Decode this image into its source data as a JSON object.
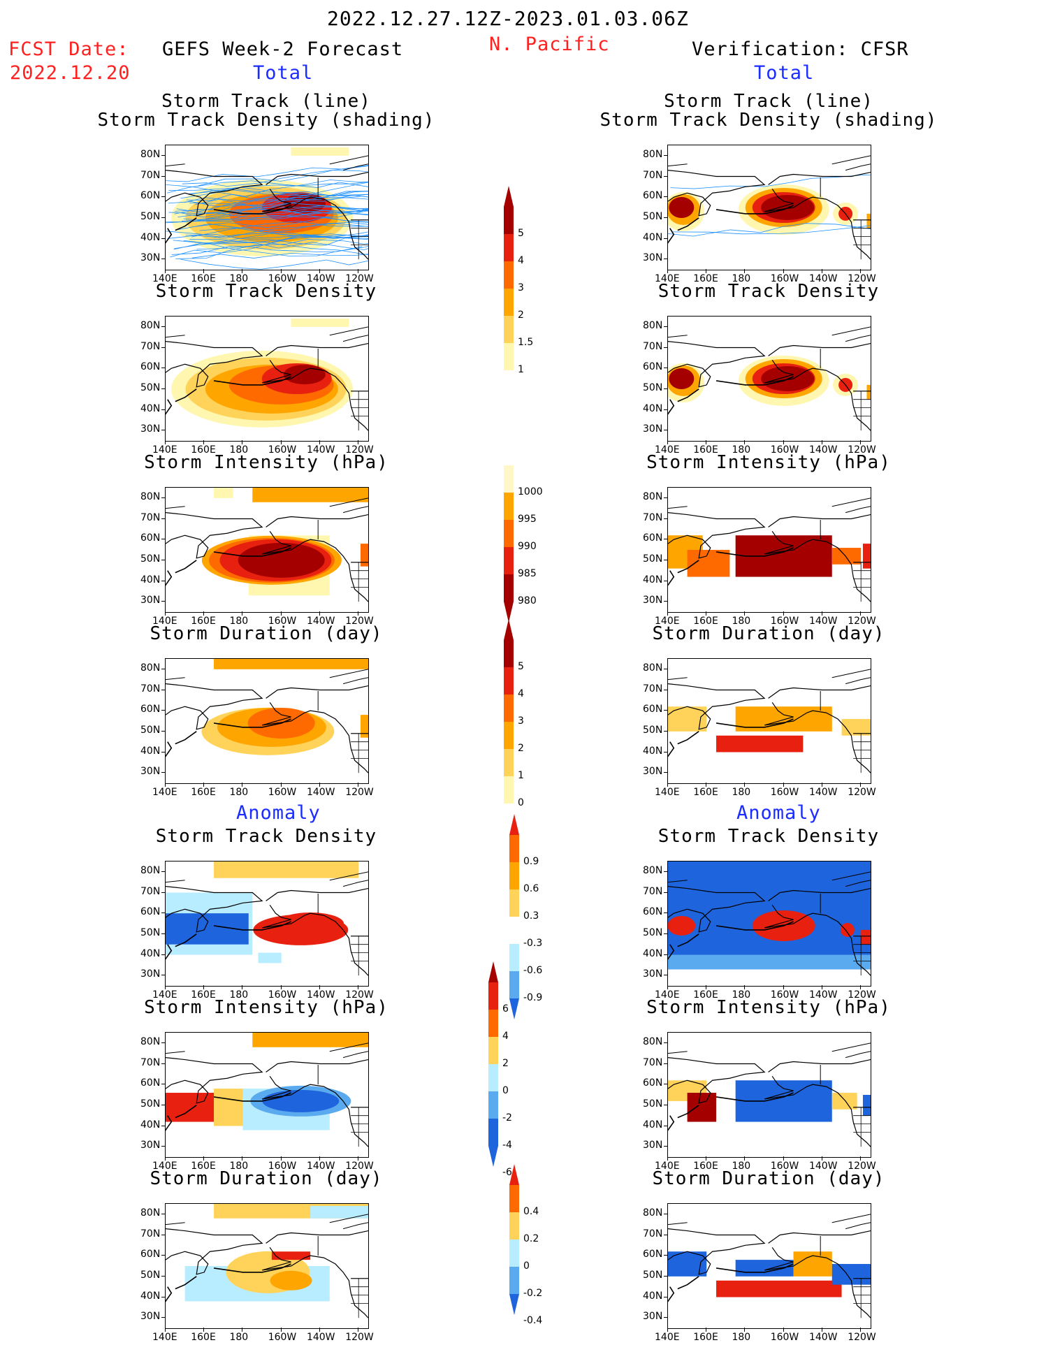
{
  "header": {
    "period": "2022.12.27.12Z-2023.01.03.06Z",
    "fcst_label": "FCST Date:",
    "fcst_date": "2022.12.20",
    "left_title": "GEFS Week-2 Forecast",
    "region": "N. Pacific",
    "right_title": "Verification: CFSR",
    "total_left": "Total",
    "total_right": "Total",
    "anomaly_left": "Anomaly",
    "anomaly_right": "Anomaly"
  },
  "axes": {
    "lat_labels": [
      "80N",
      "70N",
      "60N",
      "50N",
      "40N",
      "30N"
    ],
    "lon_labels": [
      "140E",
      "160E",
      "180",
      "160W",
      "140W",
      "120W"
    ]
  },
  "panels": {
    "l1": {
      "title1": "Storm Track (line)",
      "title2": "Storm Track Density (shading)"
    },
    "r1": {
      "title1": "Storm Track (line)",
      "title2": "Storm Track Density (shading)"
    },
    "l2": {
      "title": "Storm Track Density"
    },
    "r2": {
      "title": "Storm Track Density"
    },
    "l3": {
      "title": "Storm Intensity (hPa)"
    },
    "r3": {
      "title": "Storm Intensity (hPa)"
    },
    "l4": {
      "title": "Storm Duration (day)"
    },
    "r4": {
      "title": "Storm Duration (day)"
    },
    "l5": {
      "title": "Storm Track Density"
    },
    "r5": {
      "title": "Storm Track Density"
    },
    "l6": {
      "title": "Storm Intensity (hPa)"
    },
    "r6": {
      "title": "Storm Intensity (hPa)"
    },
    "l7": {
      "title": "Storm Duration (day)"
    },
    "r7": {
      "title": "Storm Duration (day)"
    }
  },
  "colorbars": {
    "density": {
      "labels": [
        "5",
        "4",
        "3",
        "2",
        "1.5",
        "1"
      ]
    },
    "intensity": {
      "labels": [
        "1000",
        "995",
        "990",
        "985",
        "980"
      ]
    },
    "duration": {
      "labels": [
        "5",
        "4",
        "3",
        "2",
        "1",
        "0"
      ]
    },
    "density_anom": {
      "labels": [
        "0.9",
        "0.6",
        "0.3",
        "-0.3",
        "-0.6",
        "-0.9"
      ]
    },
    "intensity_anom": {
      "labels": [
        "6",
        "4",
        "2",
        "0",
        "-2",
        "-4",
        "-6"
      ]
    },
    "duration_anom": {
      "labels": [
        "0.4",
        "0.2",
        "0",
        "-0.2",
        "-0.4"
      ]
    }
  },
  "colors": {
    "yellow_light": "#fff7b0",
    "yellow": "#ffd35a",
    "orange": "#ffa500",
    "orange_dark": "#ff6a00",
    "red": "#e82010",
    "red_dark": "#a50000",
    "blue_light": "#b8ecff",
    "blue_mid": "#5aaaf0",
    "blue": "#1e64dc",
    "blue_dark": "#0a3cc8",
    "track_blue": "#1e90ff",
    "title_blue": "#1a2cff",
    "title_red": "#ff2020"
  }
}
